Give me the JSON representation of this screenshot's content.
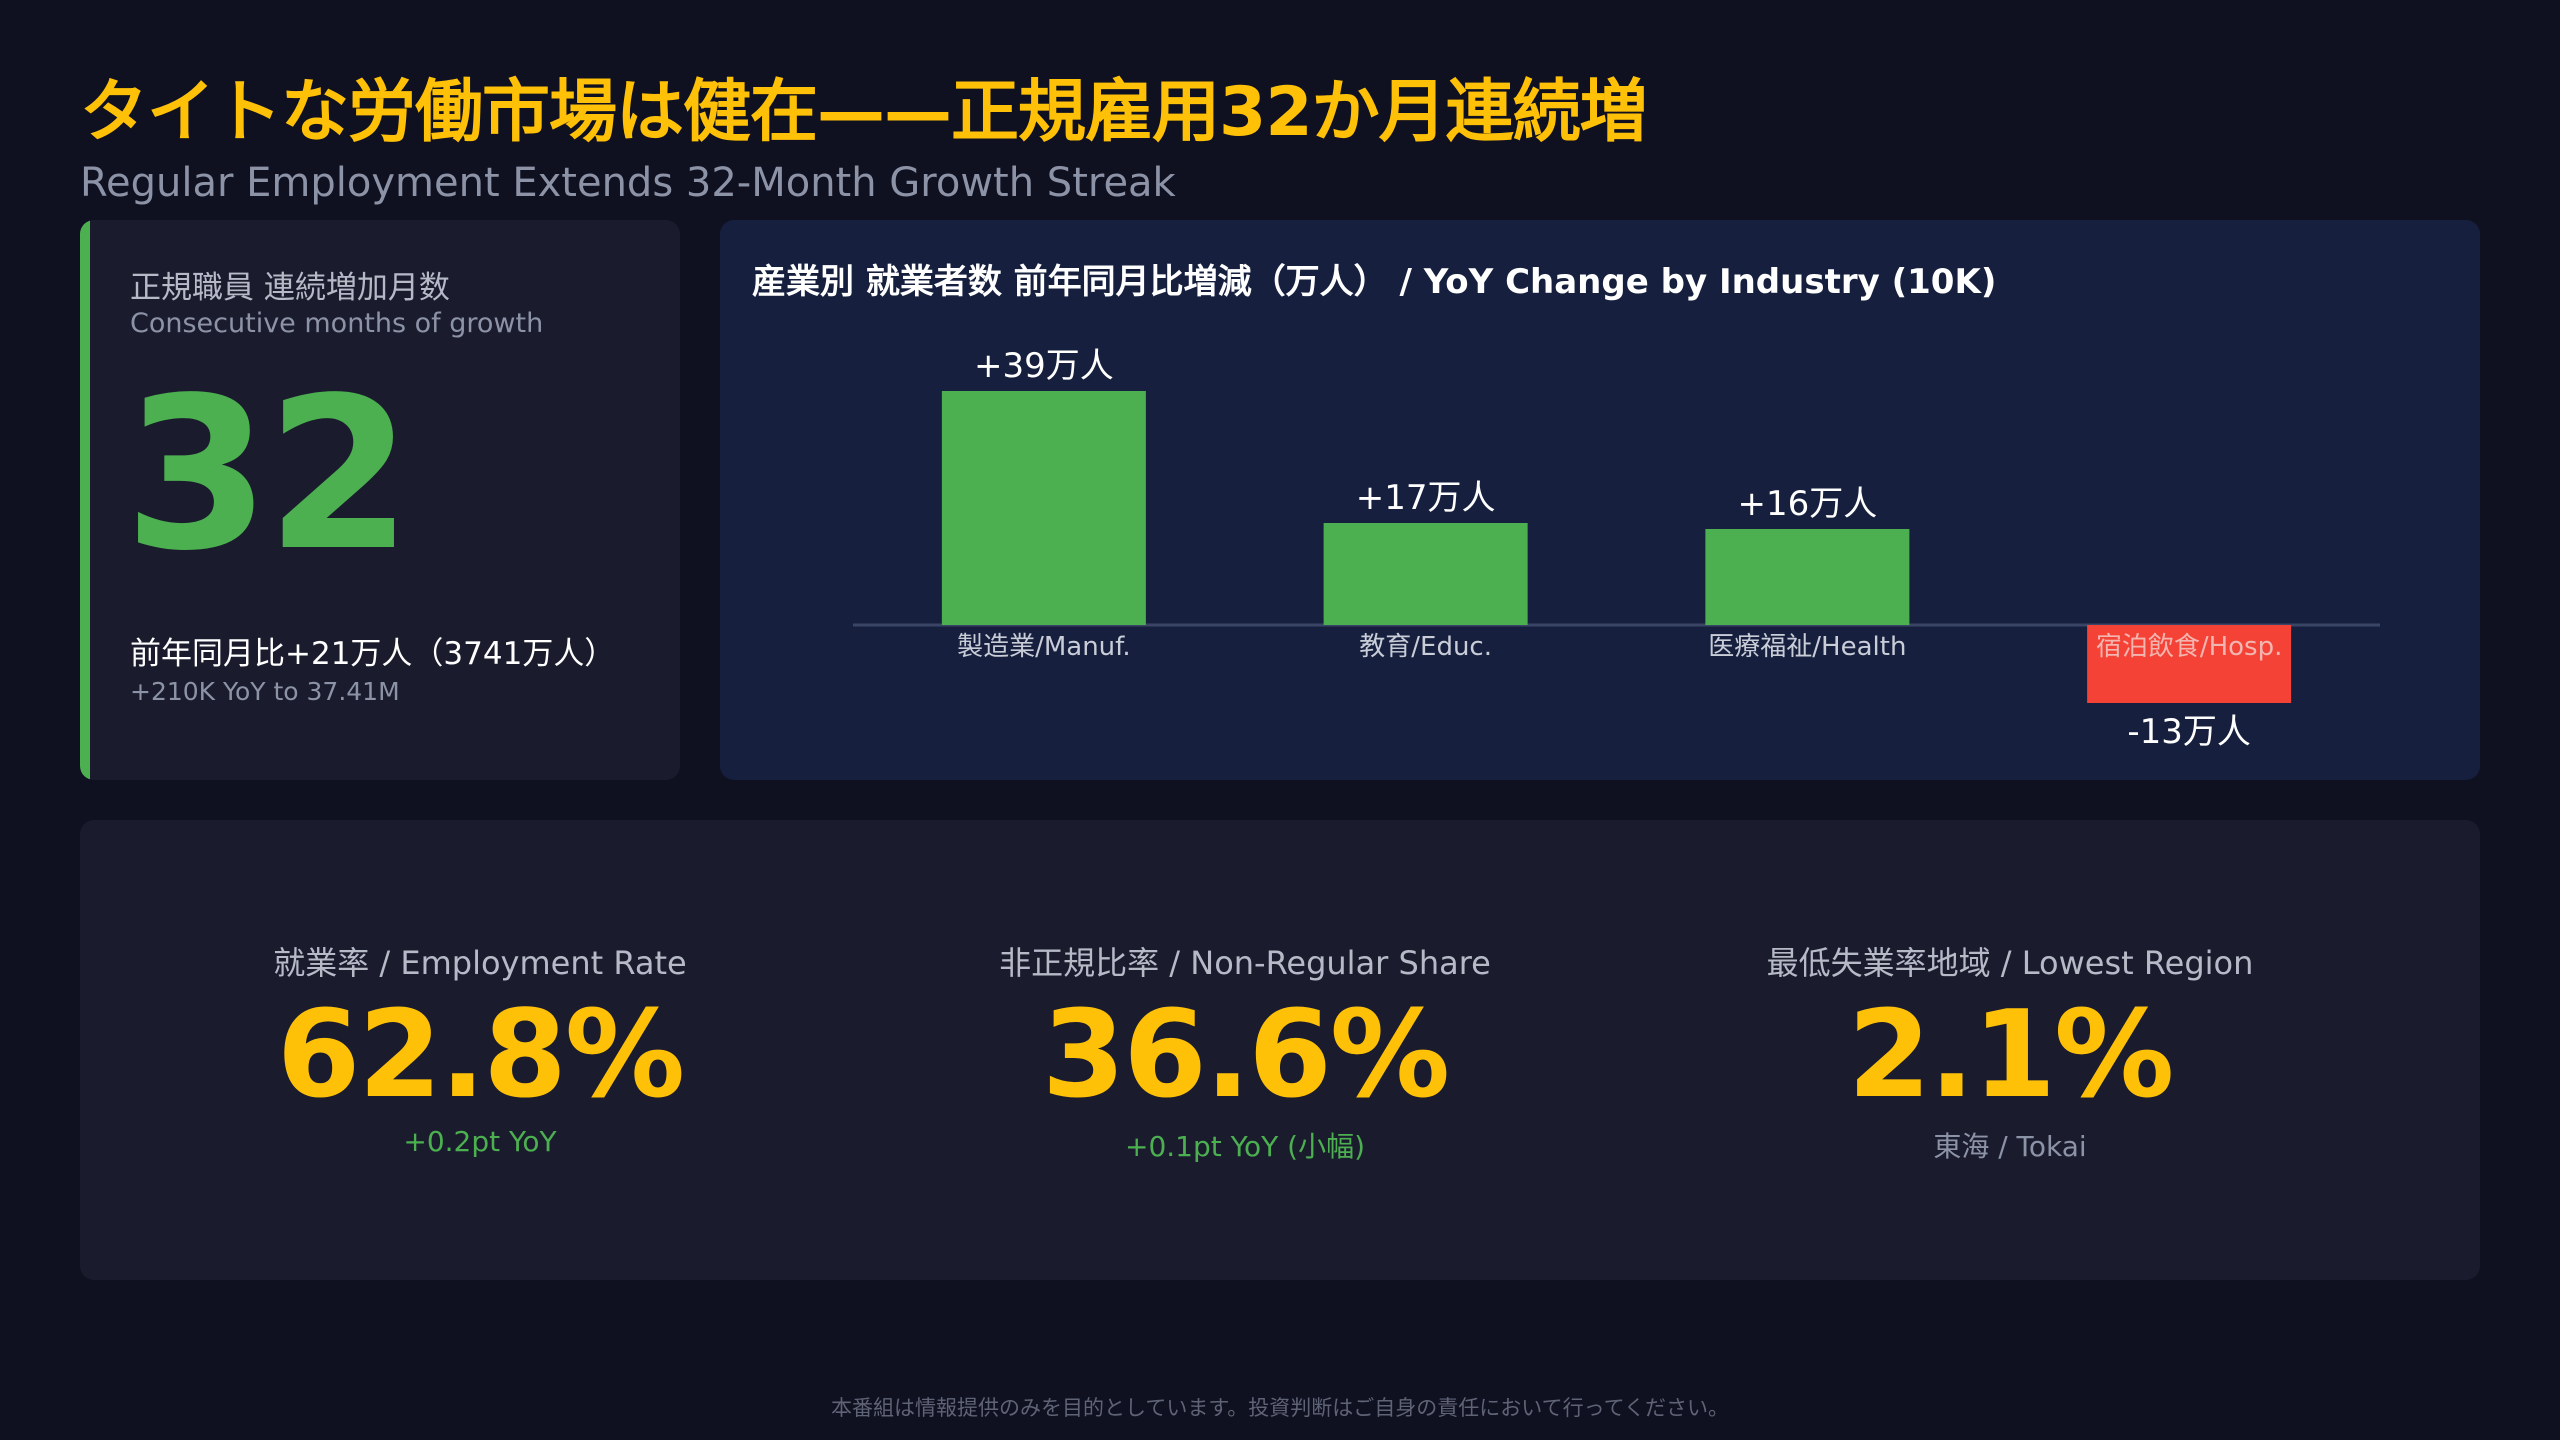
{
  "header": {
    "title": "タイトな労働市場は健在——正規雇用32か月連続増",
    "subtitle": "Regular Employment Extends 32-Month Growth Streak"
  },
  "kpi": {
    "label_jp": "正規職員 連続増加月数",
    "label_en": "Consecutive months of growth",
    "value": "32",
    "change_jp": "前年同月比+21万人（3741万人）",
    "change_en": "+210K YoY to 37.41M",
    "accent_color": "#4caf50"
  },
  "chart_data": {
    "type": "bar",
    "title": "産業別 就業者数 前年同月比増減（万人） / YoY Change by Industry (10K)",
    "categories": [
      "製造業/Manuf.",
      "教育/Educ.",
      "医療福祉/Health",
      "宿泊飲食/Hosp."
    ],
    "values": [
      39,
      17,
      16,
      -13
    ],
    "data_labels": [
      "+39万人",
      "+17万人",
      "+16万人",
      "-13万人"
    ],
    "colors": [
      "#4caf50",
      "#4caf50",
      "#4caf50",
      "#f44336"
    ],
    "xlabel": "",
    "ylabel": "",
    "grid": false
  },
  "stats": [
    {
      "label": "就業率 / Employment Rate",
      "value": "62.8%",
      "note": "+0.2pt YoY",
      "note_color": "green"
    },
    {
      "label": "非正規比率 / Non-Regular Share",
      "value": "36.6%",
      "note": "+0.1pt YoY (小幅)",
      "note_color": "green"
    },
    {
      "label": "最低失業率地域 / Lowest Region",
      "value": "2.1%",
      "note": "東海 / Tokai",
      "note_color": "gray"
    }
  ],
  "footer": {
    "disclaimer": "本番組は情報提供のみを目的としています。投資判断はご自身の責任において行ってください。"
  },
  "colors": {
    "accent_yellow": "#ffc107",
    "positive_green": "#4caf50",
    "negative_red": "#f44336",
    "background": "#0f1020"
  }
}
